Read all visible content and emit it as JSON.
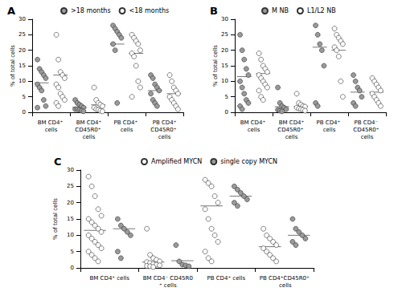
{
  "chart_data": [
    {
      "type": "scatter",
      "title": "A",
      "y_label": "% of total cells",
      "groups": [
        "BM CD4⁺ cells",
        "BM CD4⁺CD45R0⁺ cells",
        "PB CD4⁺ cells",
        "PB CD4⁺CD45R0⁺ cells"
      ],
      "series": [
        {
          "name": ">18 months",
          "color": "#9a9a9a",
          "values": [
            [
              17,
              14,
              13,
              12,
              11,
              9,
              8,
              7,
              4,
              2,
              1.5
            ],
            [
              4,
              3,
              2.5,
              2,
              1.5,
              1,
              1,
              0.8,
              0.5,
              0.3
            ],
            [
              28,
              27,
              26,
              25,
              24,
              22,
              20,
              3
            ],
            [
              12,
              11,
              9,
              8,
              7,
              6,
              4,
              3,
              2
            ]
          ],
          "means": [
            9.5,
            1.6,
            22,
            7
          ]
        },
        {
          "name": "<18 months",
          "color": "#ffffff",
          "values": [
            [
              25,
              17,
              13,
              12,
              11,
              9,
              8,
              6,
              5,
              4,
              3,
              2
            ],
            [
              8,
              4,
              3,
              2.5,
              2,
              1.5,
              1,
              0.8,
              0.5,
              0.3
            ],
            [
              25,
              24,
              23,
              22,
              20,
              19,
              18,
              15,
              10,
              8,
              5
            ],
            [
              12,
              10,
              8,
              7,
              6,
              5,
              4,
              3,
              2,
              1
            ]
          ],
          "means": [
            12,
            2.4,
            19,
            6
          ]
        }
      ],
      "ylim": [
        0,
        30
      ],
      "yticks": [
        0,
        5,
        10,
        15,
        20,
        25,
        30
      ],
      "grid": false,
      "legend": "top",
      "tick_labels": "y"
    },
    {
      "type": "scatter",
      "title": "B",
      "y_label": "% of total cells",
      "groups": [
        "BM CD4⁺ cells",
        "BM CD4⁺CD45R0⁺ cells",
        "PB CD4⁺ cells",
        "PB CD4⁻ CD45R0⁺ cells"
      ],
      "series": [
        {
          "name": "M NB",
          "color": "#9a9a9a",
          "values": [
            [
              25,
              20,
              17,
              14,
              12,
              10,
              8,
              6,
              4,
              3,
              2,
              1
            ],
            [
              8,
              3,
              2,
              1.5,
              1,
              0.8,
              0.5,
              0.3
            ],
            [
              28,
              25,
              22,
              20,
              15,
              3,
              2
            ],
            [
              12,
              10,
              8,
              7,
              5,
              3,
              2
            ]
          ],
          "means": [
            11.5,
            1.8,
            21,
            6.5
          ]
        },
        {
          "name": "L1/L2 NB",
          "color": "#ffffff",
          "values": [
            [
              19,
              17,
              15,
              14,
              13,
              12,
              11,
              10,
              9,
              8,
              7,
              5,
              4
            ],
            [
              6,
              3,
              2.5,
              2,
              1.8,
              1.5,
              1.2,
              1,
              0.8,
              0.5
            ],
            [
              27,
              25,
              24,
              23,
              22,
              21,
              20,
              18,
              10,
              5
            ],
            [
              11,
              10,
              9,
              8,
              7,
              6,
              5,
              4,
              3,
              2
            ]
          ],
          "means": [
            12.5,
            1.9,
            20,
            6.5
          ]
        }
      ],
      "ylim": [
        0,
        30
      ],
      "yticks": [
        0,
        5,
        10,
        15,
        20,
        25,
        30
      ],
      "grid": false,
      "legend": "top",
      "tick_labels": "y"
    },
    {
      "type": "scatter",
      "title": "C",
      "y_label": "% of total cells",
      "groups": [
        "BM CD4⁺ cells",
        "BM CD4⁻ CD45R0⁺ cells",
        "PB CD4⁺ cells",
        "PB CD4⁺CD45R0⁺ cells"
      ],
      "series": [
        {
          "name": "Amplified MYCN",
          "color": "#ffffff",
          "values": [
            [
              28,
              25,
              22,
              18,
              16,
              15,
              14,
              13,
              12,
              11,
              10,
              9,
              8,
              7,
              6,
              5,
              4,
              3,
              2
            ],
            [
              12,
              4,
              3,
              2.5,
              2,
              1.8,
              1.5,
              1.2,
              1,
              0.8,
              0.6,
              0.5,
              0.3
            ],
            [
              27,
              26,
              25,
              22,
              20,
              18,
              15,
              12,
              10,
              8,
              5,
              3,
              2
            ],
            [
              12,
              10,
              9,
              8,
              7,
              6,
              5,
              4,
              3,
              2
            ]
          ],
          "means": [
            11.5,
            1.8,
            19,
            6.5
          ]
        },
        {
          "name": "single copy MYCN",
          "color": "#9a9a9a",
          "values": [
            [
              15,
              13,
              12,
              11,
              10,
              5,
              3
            ],
            [
              7,
              2,
              1,
              0.8,
              0.5
            ],
            [
              25,
              24,
              23,
              22,
              21,
              20,
              19
            ],
            [
              15,
              12,
              11,
              10,
              9,
              8,
              7
            ]
          ],
          "means": [
            12,
            2.2,
            22,
            10
          ]
        }
      ],
      "ylim": [
        0,
        30
      ],
      "yticks": [
        0,
        5,
        10,
        15,
        20,
        25,
        30
      ],
      "grid": false,
      "legend": "top",
      "tick_labels": "y"
    }
  ]
}
